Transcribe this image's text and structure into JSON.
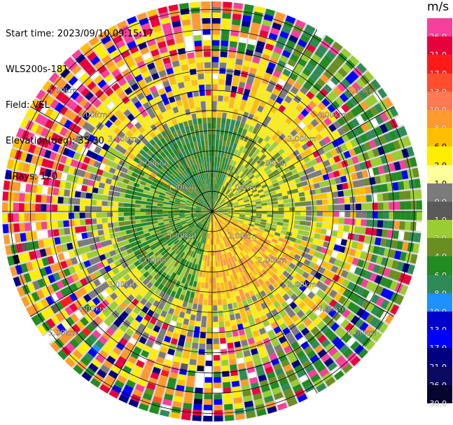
{
  "header": {
    "start_time": "Start time: 2023/09/10 09:15:17",
    "instrument": "WLS200s-181",
    "field": "Field: VEL",
    "elevation": "Elevation(deg): 35.30",
    "nrays": "NRays: 120"
  },
  "range_rings": [
    {
      "label": "1.00km"
    },
    {
      "label": "2.00km"
    },
    {
      "label": "3.00km"
    },
    {
      "label": "4.00km"
    },
    {
      "label": "5.00km"
    }
  ],
  "colorbar": {
    "unit": "m/s",
    "levels": [
      {
        "value": "26.0",
        "color": "#f6409b"
      },
      {
        "value": "21.0",
        "color": "#e8003c"
      },
      {
        "value": "17.0",
        "color": "#ff1a1a"
      },
      {
        "value": "13.0",
        "color": "#ff4d2e"
      },
      {
        "value": "10.0",
        "color": "#ff7a52"
      },
      {
        "value": "8.0",
        "color": "#ff9a2e"
      },
      {
        "value": "6.0",
        "color": "#ffbf00"
      },
      {
        "value": "2.0",
        "color": "#ffee00"
      },
      {
        "value": "1.0",
        "color": "#ffff99"
      },
      {
        "value": "0.0",
        "color": "#7b7b7b"
      },
      {
        "value": "-1.0",
        "color": "#5a5a5a"
      },
      {
        "value": "-2.0",
        "color": "#9acd32"
      },
      {
        "value": "-4.0",
        "color": "#6b8e23"
      },
      {
        "value": "-6.0",
        "color": "#228b22"
      },
      {
        "value": "-8.0",
        "color": "#2e8b57"
      },
      {
        "value": "-10.0",
        "color": "#1e90ff"
      },
      {
        "value": "-13.0",
        "color": "#0000cd"
      },
      {
        "value": "-17.0",
        "color": "#0000ff"
      },
      {
        "value": "-21.0",
        "color": "#000080"
      },
      {
        "value": "-26.0",
        "color": "#0a0a60"
      },
      {
        "value": "-30.0",
        "color": "#050530"
      }
    ]
  }
}
